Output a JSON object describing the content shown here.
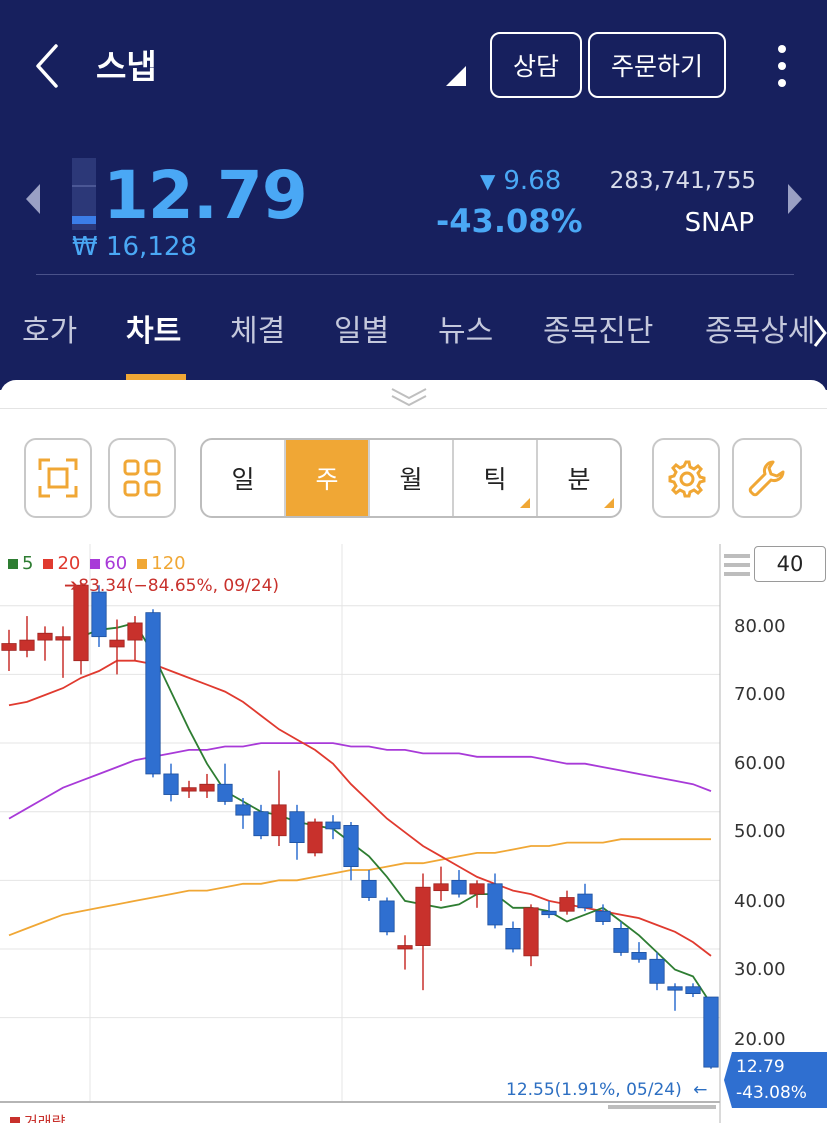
{
  "header": {
    "title": "스냅",
    "consult_label": "상담",
    "order_label": "주문하기"
  },
  "quote": {
    "price": "12.79",
    "price_krw": "₩ 16,128",
    "change_arrow": "▼",
    "change": "9.68",
    "change_pct": "-43.08%",
    "volume": "283,741,755",
    "ticker": "SNAP"
  },
  "tabs": [
    {
      "label": "호가"
    },
    {
      "label": "차트",
      "active": true
    },
    {
      "label": "체결"
    },
    {
      "label": "일별"
    },
    {
      "label": "뉴스"
    },
    {
      "label": "종목진단"
    },
    {
      "label": "종목상세"
    }
  ],
  "toolbar": {
    "periods": [
      {
        "label": "일"
      },
      {
        "label": "주",
        "active": true
      },
      {
        "label": "월"
      },
      {
        "label": "틱"
      },
      {
        "label": "분"
      }
    ]
  },
  "chart_data": {
    "type": "candlestick",
    "legend": [
      {
        "label": "5",
        "color": "#2e7d32"
      },
      {
        "label": "20",
        "color": "#e03a2f"
      },
      {
        "label": "60",
        "color": "#a83ad8"
      },
      {
        "label": "120",
        "color": "#f0a735"
      }
    ],
    "visible_count": "40",
    "y_ticks": [
      "80.00",
      "70.00",
      "60.00",
      "50.00",
      "40.00",
      "30.00",
      "20.00"
    ],
    "ylim": [
      8,
      89
    ],
    "high_annotation": "83.34(−84.65%, 09/24)",
    "low_annotation": "12.55(1.91%, 05/24)",
    "last_price": "12.79",
    "last_change": "-43.08%",
    "volume_label": "거래량",
    "candles": [
      {
        "o": 73.5,
        "h": 76.5,
        "l": 70.5,
        "c": 74.5
      },
      {
        "o": 73.5,
        "h": 78.5,
        "l": 72.5,
        "c": 75.0
      },
      {
        "o": 75.0,
        "h": 77.0,
        "l": 72.0,
        "c": 76.0
      },
      {
        "o": 75.0,
        "h": 77.0,
        "l": 69.5,
        "c": 75.5
      },
      {
        "o": 72.0,
        "h": 83.34,
        "l": 70.0,
        "c": 83.0
      },
      {
        "o": 82.0,
        "h": 83.0,
        "l": 74.0,
        "c": 75.5
      },
      {
        "o": 74.0,
        "h": 78.0,
        "l": 70.0,
        "c": 75.0
      },
      {
        "o": 75.0,
        "h": 78.5,
        "l": 72.0,
        "c": 77.5
      },
      {
        "o": 79.0,
        "h": 79.5,
        "l": 55.0,
        "c": 55.5
      },
      {
        "o": 55.5,
        "h": 57.0,
        "l": 51.5,
        "c": 52.5
      },
      {
        "o": 53.0,
        "h": 54.5,
        "l": 52.0,
        "c": 53.5
      },
      {
        "o": 53.0,
        "h": 55.5,
        "l": 52.0,
        "c": 54.0
      },
      {
        "o": 54.0,
        "h": 57.0,
        "l": 51.0,
        "c": 51.5
      },
      {
        "o": 51.0,
        "h": 52.0,
        "l": 47.5,
        "c": 49.5
      },
      {
        "o": 50.0,
        "h": 51.0,
        "l": 46.0,
        "c": 46.5
      },
      {
        "o": 46.5,
        "h": 56.0,
        "l": 45.0,
        "c": 51.0
      },
      {
        "o": 50.0,
        "h": 51.0,
        "l": 43.0,
        "c": 45.5
      },
      {
        "o": 44.0,
        "h": 49.0,
        "l": 43.5,
        "c": 48.5
      },
      {
        "o": 48.5,
        "h": 49.5,
        "l": 46.0,
        "c": 47.5
      },
      {
        "o": 48.0,
        "h": 48.5,
        "l": 40.0,
        "c": 42.0
      },
      {
        "o": 40.0,
        "h": 41.5,
        "l": 37.0,
        "c": 37.5
      },
      {
        "o": 37.0,
        "h": 37.5,
        "l": 32.0,
        "c": 32.5
      },
      {
        "o": 30.0,
        "h": 32.0,
        "l": 27.0,
        "c": 30.5
      },
      {
        "o": 30.5,
        "h": 41.0,
        "l": 24.0,
        "c": 39.0
      },
      {
        "o": 38.5,
        "h": 42.0,
        "l": 37.0,
        "c": 39.5
      },
      {
        "o": 40.0,
        "h": 41.5,
        "l": 37.5,
        "c": 38.0
      },
      {
        "o": 38.0,
        "h": 40.0,
        "l": 36.0,
        "c": 39.5
      },
      {
        "o": 39.5,
        "h": 41.0,
        "l": 33.0,
        "c": 33.5
      },
      {
        "o": 33.0,
        "h": 34.0,
        "l": 29.5,
        "c": 30.0
      },
      {
        "o": 29.0,
        "h": 36.5,
        "l": 27.5,
        "c": 36.0
      },
      {
        "o": 35.5,
        "h": 37.0,
        "l": 34.5,
        "c": 35.0
      },
      {
        "o": 35.5,
        "h": 38.5,
        "l": 35.0,
        "c": 37.5
      },
      {
        "o": 38.0,
        "h": 39.5,
        "l": 35.5,
        "c": 36.0
      },
      {
        "o": 35.5,
        "h": 36.5,
        "l": 33.5,
        "c": 34.0
      },
      {
        "o": 33.0,
        "h": 34.0,
        "l": 29.0,
        "c": 29.5
      },
      {
        "o": 29.5,
        "h": 31.0,
        "l": 28.0,
        "c": 28.5
      },
      {
        "o": 28.5,
        "h": 29.5,
        "l": 24.0,
        "c": 25.0
      },
      {
        "o": 24.5,
        "h": 25.0,
        "l": 21.0,
        "c": 24.0
      },
      {
        "o": 24.5,
        "h": 25.0,
        "l": 23.0,
        "c": 23.5
      },
      {
        "o": 23.0,
        "h": 23.0,
        "l": 12.55,
        "c": 12.79
      }
    ],
    "ma": {
      "ma5": [
        null,
        null,
        null,
        null,
        75.5,
        76.5,
        76.8,
        77.5,
        73.0,
        67.5,
        62.0,
        57.0,
        53.0,
        51.5,
        50.0,
        49.5,
        48.5,
        48.0,
        47.5,
        45.5,
        43.5,
        40.5,
        37.0,
        36.5,
        36.0,
        36.5,
        38.0,
        38.0,
        36.0,
        36.0,
        35.5,
        34.0,
        35.0,
        36.0,
        34.0,
        32.0,
        29.5,
        27.0,
        26.0,
        22.0
      ],
      "ma20": [
        65.5,
        66.0,
        67.0,
        68.0,
        69.5,
        70.5,
        72.0,
        72.0,
        71.5,
        70.5,
        69.5,
        68.5,
        67.5,
        66.0,
        64.0,
        62.0,
        60.5,
        59.0,
        57.0,
        54.0,
        51.5,
        49.0,
        47.0,
        45.0,
        43.5,
        42.0,
        40.5,
        39.5,
        38.5,
        38.0,
        37.0,
        36.5,
        36.0,
        35.5,
        35.0,
        34.5,
        33.5,
        32.5,
        31.0,
        29.0
      ],
      "ma60": [
        49.0,
        50.5,
        52.0,
        53.5,
        54.5,
        55.5,
        56.5,
        57.5,
        58.0,
        58.5,
        59.0,
        59.0,
        59.5,
        59.5,
        60.0,
        60.0,
        60.0,
        60.0,
        60.0,
        59.5,
        59.5,
        59.0,
        59.0,
        58.5,
        58.5,
        58.5,
        58.0,
        58.0,
        58.0,
        58.0,
        57.5,
        57.0,
        57.0,
        56.5,
        56.0,
        55.5,
        55.0,
        54.5,
        54.0,
        53.0
      ],
      "ma120": [
        32.0,
        33.0,
        34.0,
        35.0,
        35.5,
        36.0,
        36.5,
        37.0,
        37.5,
        38.0,
        38.5,
        38.5,
        39.0,
        39.5,
        39.5,
        40.0,
        40.0,
        40.5,
        41.0,
        41.5,
        41.5,
        42.0,
        42.5,
        42.5,
        43.0,
        43.5,
        44.0,
        44.0,
        44.5,
        45.0,
        45.0,
        45.5,
        45.5,
        45.5,
        46.0,
        46.0,
        46.0,
        46.0,
        46.0,
        46.0
      ]
    }
  }
}
